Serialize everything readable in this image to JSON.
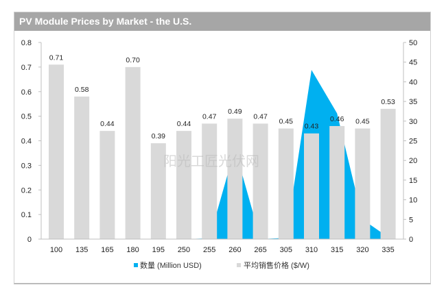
{
  "chart_data": {
    "type": "bar",
    "title": "PV Module Prices by Market - the U.S.",
    "categories": [
      "100",
      "135",
      "165",
      "180",
      "195",
      "250",
      "255",
      "260",
      "265",
      "305",
      "310",
      "315",
      "320",
      "335"
    ],
    "series": [
      {
        "name": "数量 (Million USD)",
        "type": "area",
        "axis": "right",
        "color": "#00b0f0",
        "values": [
          0,
          0,
          0,
          0,
          0,
          0,
          0.2,
          23,
          0,
          0.3,
          43,
          32,
          5,
          0.5
        ]
      },
      {
        "name": "平均销售价格 ($/W)",
        "type": "bar",
        "axis": "left",
        "color": "#d9d9d9",
        "values": [
          0.71,
          0.58,
          0.44,
          0.7,
          0.39,
          0.44,
          0.47,
          0.49,
          0.47,
          0.45,
          0.43,
          0.46,
          0.45,
          0.53
        ],
        "labels": [
          "0.71",
          "0.58",
          "0.44",
          "0.70",
          "0.39",
          "0.44",
          "0.47",
          "0.49",
          "0.47",
          "0.45",
          "0.43",
          "0.46",
          "0.45",
          "0.53"
        ]
      }
    ],
    "y_left": {
      "range": [
        0,
        0.8
      ],
      "ticks": [
        "0",
        "0.1",
        "0.2",
        "0.3",
        "0.4",
        "0.5",
        "0.6",
        "0.7",
        "0.8"
      ]
    },
    "y_right": {
      "range": [
        0,
        50
      ],
      "ticks": [
        "0",
        "5",
        "10",
        "15",
        "20",
        "25",
        "30",
        "35",
        "40",
        "45",
        "50"
      ]
    },
    "legend_position": "bottom",
    "grid": false
  },
  "watermark": "阳光工匠光伏网"
}
